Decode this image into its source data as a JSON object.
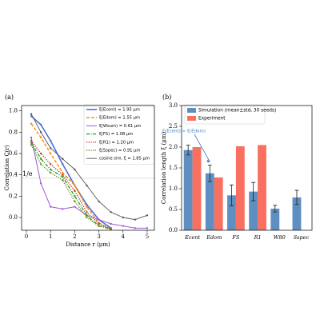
{
  "chart_data": [
    {
      "type": "line",
      "panel_label": "(a)",
      "xlabel": "Distance r (μm)",
      "ylabel": "Correlation C(r)",
      "xlim": [
        -0.2,
        5.3
      ],
      "ylim": [
        -0.12,
        1.05
      ],
      "xticks": [
        0,
        1,
        2,
        3,
        4,
        5
      ],
      "yticks": [
        {
          "value": 0,
          "label": "0.0"
        },
        0.2,
        0.4,
        0.6,
        0.8,
        {
          "value": 1,
          "label": "1.0"
        }
      ],
      "reference_line": {
        "value": 0.368,
        "label": "1/e"
      },
      "legend": "upper right",
      "series": [
        {
          "name": "ξ(Ecent) = 1.95 μm",
          "color": "#4a6fd6",
          "style": "solid",
          "width": 1.6,
          "x": [
            0.2,
            0.6,
            1,
            1.5,
            2,
            2.5,
            3,
            3.5
          ],
          "values": [
            0.95,
            0.87,
            0.72,
            0.5,
            0.3,
            0.12,
            -0.02,
            -0.1
          ]
        },
        {
          "name": "ξ(Edom) = 1.55 μm",
          "color": "#ff8c00",
          "style": "dashed",
          "width": 1.4,
          "x": [
            0.2,
            0.6,
            1,
            1.5,
            2,
            2.5,
            3,
            3.5
          ],
          "values": [
            0.88,
            0.75,
            0.6,
            0.42,
            0.3,
            0.1,
            -0.05,
            -0.11
          ]
        },
        {
          "name": "ξ(Wsum) = 0.61 μm",
          "color": "#9b59d6",
          "style": "solid",
          "width": 1,
          "x": [
            0.2,
            0.6,
            1,
            1.5,
            2,
            2.5,
            3,
            3.5,
            4,
            4.5,
            5
          ],
          "values": [
            0.75,
            0.32,
            0.1,
            0.08,
            0.1,
            0.02,
            -0.02,
            -0.06,
            -0.08,
            -0.1,
            -0.1
          ]
        },
        {
          "name": "ξ(FS) = 1.08 μm",
          "color": "#2ca02c",
          "style": "dashdot",
          "width": 1.4,
          "x": [
            0.2,
            0.6,
            1,
            1.5,
            2,
            2.5,
            3,
            3.5
          ],
          "values": [
            0.7,
            0.55,
            0.45,
            0.38,
            0.2,
            0.02,
            -0.08,
            -0.11
          ]
        },
        {
          "name": "ξ(R1) = 1.20 μm",
          "color": "#c0392b",
          "style": "dotted",
          "width": 1.4,
          "x": [
            0.2,
            0.6,
            1,
            1.5,
            2,
            2.5,
            3,
            3.5
          ],
          "values": [
            0.72,
            0.6,
            0.5,
            0.4,
            0.25,
            0.05,
            -0.06,
            -0.11
          ]
        },
        {
          "name": "ξ(Sspec) = 0.91 μm",
          "color": "#6b8e23",
          "style": "dotted",
          "width": 1.4,
          "x": [
            0.2,
            0.6,
            1,
            1.5,
            2,
            2.5,
            3,
            3.5
          ],
          "values": [
            0.68,
            0.5,
            0.42,
            0.35,
            0.15,
            0,
            -0.08,
            -0.1
          ]
        },
        {
          "name": "cosine sim. ξ = 1.85 μm",
          "color": "#555555",
          "style": "solid",
          "width": 0.9,
          "x": [
            0.2,
            0.6,
            1,
            1.5,
            2,
            2.5,
            3,
            3.5,
            4,
            4.5,
            5
          ],
          "values": [
            0.97,
            0.8,
            0.65,
            0.55,
            0.45,
            0.3,
            0.15,
            0.05,
            0,
            -0.02,
            0.02
          ]
        }
      ]
    },
    {
      "type": "bar",
      "panel_label": "(b)",
      "ylabel": "Correlation length ξ (μm)",
      "ylim": [
        0,
        3
      ],
      "yticks": [
        {
          "value": 0,
          "label": "0.0"
        },
        0.5,
        {
          "value": 1,
          "label": "1.0"
        },
        1.5,
        {
          "value": 2,
          "label": "2.0"
        },
        2.5,
        {
          "value": 3,
          "label": "3.0"
        }
      ],
      "categories": [
        "Ecent",
        "Edom",
        "FS",
        "R1",
        "W80",
        "Sspec"
      ],
      "legend": "upper left",
      "annotation": "ξ(Ecent) > ξ(Edom)",
      "series": [
        {
          "name": "Simulation (mean±std, 30 seeds)",
          "color": "#5f8fc0",
          "values": [
            1.93,
            1.37,
            0.84,
            0.93,
            0.52,
            0.79
          ],
          "errors": [
            0.12,
            0.2,
            0.25,
            0.22,
            0.08,
            0.17
          ]
        },
        {
          "name": "Experiment",
          "color": "#fa7060",
          "values": [
            2.0,
            1.27,
            2.02,
            2.05,
            null,
            null
          ]
        }
      ]
    }
  ]
}
